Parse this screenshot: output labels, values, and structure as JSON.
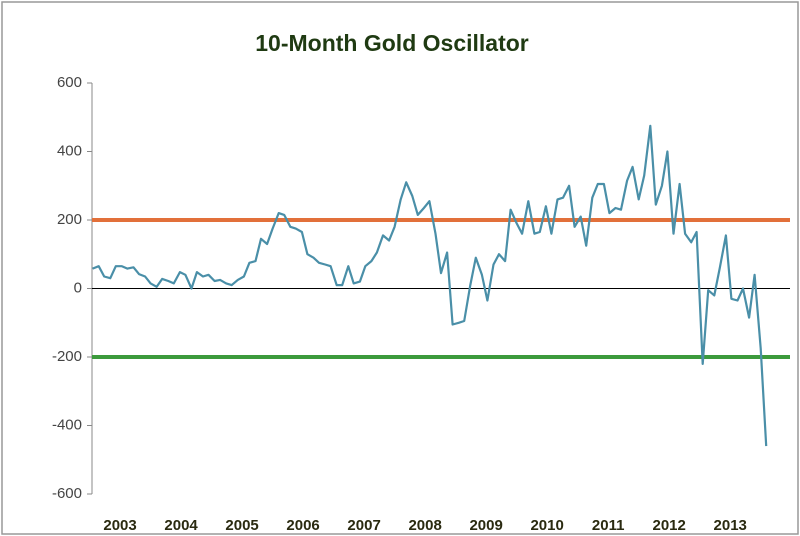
{
  "chart_data": {
    "type": "line",
    "title": "10-Month Gold Oscillator",
    "x": [
      2003.05,
      2003.15,
      2003.24,
      2003.34,
      2003.43,
      2003.53,
      2003.62,
      2003.72,
      2003.81,
      2003.91,
      2004.0,
      2004.1,
      2004.19,
      2004.29,
      2004.38,
      2004.48,
      2004.57,
      2004.67,
      2004.76,
      2004.86,
      2004.95,
      2005.05,
      2005.14,
      2005.24,
      2005.33,
      2005.43,
      2005.53,
      2005.62,
      2005.72,
      2005.81,
      2005.91,
      2006.0,
      2006.1,
      2006.19,
      2006.29,
      2006.38,
      2006.48,
      2006.57,
      2006.67,
      2006.76,
      2006.86,
      2006.95,
      2007.05,
      2007.14,
      2007.24,
      2007.33,
      2007.43,
      2007.52,
      2007.62,
      2007.71,
      2007.81,
      2007.91,
      2008.0,
      2008.1,
      2008.19,
      2008.29,
      2008.38,
      2008.48,
      2008.57,
      2008.67,
      2008.76,
      2008.86,
      2008.95,
      2009.05,
      2009.14,
      2009.24,
      2009.33,
      2009.43,
      2009.52,
      2009.62,
      2009.71,
      2009.81,
      2009.9,
      2010.0,
      2010.09,
      2010.19,
      2010.29,
      2010.38,
      2010.48,
      2010.57,
      2010.67,
      2010.76,
      2010.86,
      2010.95,
      2011.05,
      2011.14,
      2011.24,
      2011.33,
      2011.43,
      2011.52,
      2011.62,
      2011.71,
      2011.81,
      2011.9,
      2012.0,
      2012.09,
      2012.19,
      2012.28,
      2012.38,
      2012.47,
      2012.57,
      2012.67,
      2012.76,
      2012.86,
      2012.95,
      2013.05,
      2013.14,
      2013.24,
      2013.33,
      2013.43,
      2013.52,
      2013.62,
      2013.71,
      2013.81,
      2013.9,
      2014.0,
      2014.09
    ],
    "series": [
      {
        "color": "#4a8fa8",
        "values": [
          58,
          65,
          35,
          30,
          65,
          65,
          58,
          62,
          42,
          35,
          15,
          5,
          28,
          22,
          15,
          48,
          40,
          0,
          48,
          35,
          40,
          22,
          25,
          15,
          10,
          25,
          35,
          75,
          80,
          145,
          130,
          175,
          220,
          215,
          180,
          175,
          165,
          100,
          90,
          75,
          70,
          65,
          10,
          10,
          65,
          15,
          20,
          65,
          80,
          105,
          155,
          140,
          180,
          260,
          310,
          270,
          215,
          235,
          255,
          160,
          45,
          105,
          -105,
          -100,
          -95,
          10,
          90,
          40,
          -35,
          70,
          100,
          80,
          230,
          190,
          160,
          255,
          160,
          165,
          240,
          160,
          260,
          265,
          300,
          180,
          210,
          125,
          265,
          305,
          305,
          220,
          235,
          230,
          315,
          355,
          260,
          330,
          475,
          245,
          300,
          400,
          160,
          305,
          160,
          135,
          165,
          -220,
          -5,
          -20,
          60,
          155,
          -30,
          -35,
          0,
          -85,
          40,
          -175,
          -460
        ]
      }
    ],
    "hlines": [
      {
        "value": 200,
        "color": "#e2703a"
      },
      {
        "value": -200,
        "color": "#3c9a3c"
      }
    ],
    "xlim": [
      2003.04,
      2014.48
    ],
    "xticks": [
      {
        "value": 2003.5,
        "label": "2003"
      },
      {
        "value": 2004.5,
        "label": "2004"
      },
      {
        "value": 2005.5,
        "label": "2005"
      },
      {
        "value": 2006.5,
        "label": "2006"
      },
      {
        "value": 2007.5,
        "label": "2007"
      },
      {
        "value": 2008.5,
        "label": "2008"
      },
      {
        "value": 2009.5,
        "label": "2009"
      },
      {
        "value": 2010.5,
        "label": "2010"
      },
      {
        "value": 2011.5,
        "label": "2011"
      },
      {
        "value": 2012.5,
        "label": "2012"
      },
      {
        "value": 2013.5,
        "label": "2013"
      }
    ],
    "ylim": [
      -600,
      600
    ],
    "yticks": [
      -600,
      -400,
      -200,
      0,
      200,
      400,
      600
    ]
  }
}
